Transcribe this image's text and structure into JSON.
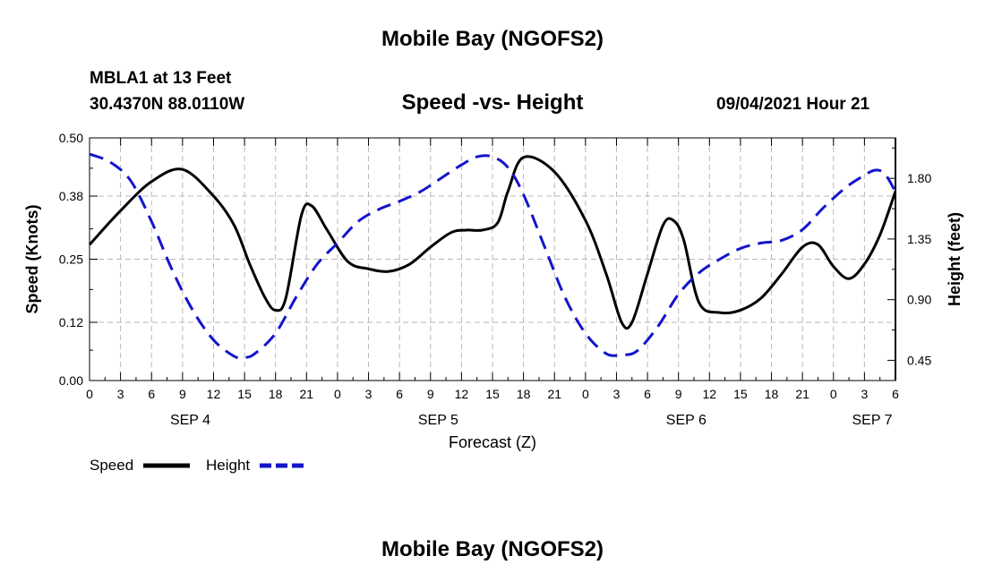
{
  "header": {
    "title": "Mobile Bay (NGOFS2)",
    "station": "MBLA1 at 13 Feet",
    "coordinates": "30.4370N  88.0110W",
    "subtitle": "Speed -vs- Height",
    "datetime": "09/04/2021 Hour 21"
  },
  "footer": {
    "title": "Mobile Bay (NGOFS2)"
  },
  "chart_data": {
    "type": "line",
    "xlabel": "Forecast (Z)",
    "ylabel_left": "Speed (Knots)",
    "ylabel_right": "Height (feet)",
    "x_range_hours": [
      0,
      78
    ],
    "x_tick_labels": [
      "0",
      "3",
      "6",
      "9",
      "12",
      "15",
      "18",
      "21",
      "0",
      "3",
      "6",
      "9",
      "12",
      "15",
      "18",
      "21",
      "0",
      "3",
      "6",
      "9",
      "12",
      "15",
      "18",
      "21",
      "0",
      "3",
      "6"
    ],
    "date_labels": [
      {
        "label": "SEP 4",
        "hour": 9.75
      },
      {
        "label": "SEP 5",
        "hour": 33.75
      },
      {
        "label": "SEP 6",
        "hour": 57.75
      },
      {
        "label": "SEP 7",
        "hour": 75.75
      }
    ],
    "ylim_left": [
      0,
      0.5
    ],
    "yticks_left": [
      "0.00",
      "0.12",
      "0.25",
      "0.38",
      "0.50"
    ],
    "ylim_right": [
      0.3,
      2.1
    ],
    "yticks_right": [
      "0.45",
      "0.90",
      "1.35",
      "1.80"
    ],
    "grid": true,
    "legend_position": "bottom-left",
    "series": [
      {
        "name": "Speed",
        "axis": "left",
        "color": "#000000",
        "dash": false,
        "x": [
          0,
          3,
          6,
          9,
          12,
          14,
          15.5,
          17,
          18,
          19,
          20.5,
          21.5,
          23,
          25,
          27,
          29,
          31,
          33,
          35,
          36.5,
          38,
          39.5,
          40.5,
          42,
          45,
          48,
          50,
          51.5,
          52.5,
          54,
          55.5,
          56.5,
          57.5,
          59,
          61,
          63,
          65,
          67,
          69,
          70.5,
          72,
          73.5,
          75,
          76.5,
          78
        ],
        "y": [
          0.28,
          0.35,
          0.41,
          0.435,
          0.38,
          0.32,
          0.24,
          0.17,
          0.145,
          0.17,
          0.34,
          0.36,
          0.31,
          0.245,
          0.23,
          0.225,
          0.24,
          0.275,
          0.305,
          0.31,
          0.31,
          0.325,
          0.39,
          0.46,
          0.43,
          0.33,
          0.22,
          0.12,
          0.12,
          0.22,
          0.32,
          0.33,
          0.29,
          0.16,
          0.14,
          0.145,
          0.17,
          0.22,
          0.275,
          0.28,
          0.235,
          0.21,
          0.24,
          0.3,
          0.39
        ]
      },
      {
        "name": "Height",
        "axis": "right",
        "color": "#1414cc",
        "dash": true,
        "x": [
          0,
          2,
          4,
          6,
          8,
          10,
          12,
          14,
          15,
          16,
          18,
          20,
          22,
          24,
          26,
          28,
          30,
          32,
          34,
          36,
          37.5,
          39,
          40.5,
          42,
          44,
          46,
          48,
          50,
          51.5,
          53,
          55,
          57,
          59,
          61,
          63,
          65,
          67,
          69,
          71,
          73,
          74.5,
          76,
          77,
          78
        ],
        "y": [
          1.98,
          1.92,
          1.78,
          1.48,
          1.12,
          0.82,
          0.6,
          0.48,
          0.47,
          0.5,
          0.65,
          0.92,
          1.16,
          1.32,
          1.48,
          1.57,
          1.63,
          1.7,
          1.8,
          1.9,
          1.96,
          1.96,
          1.88,
          1.68,
          1.3,
          0.92,
          0.65,
          0.5,
          0.49,
          0.52,
          0.7,
          0.94,
          1.1,
          1.2,
          1.28,
          1.32,
          1.34,
          1.42,
          1.58,
          1.72,
          1.8,
          1.86,
          1.83,
          1.7
        ]
      }
    ]
  }
}
